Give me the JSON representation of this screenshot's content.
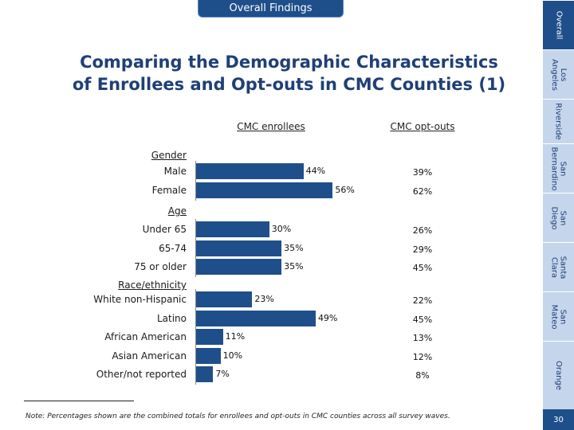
{
  "header": {
    "tab_label": "Overall Findings"
  },
  "title": {
    "line1": "Comparing the Demographic Characteristics",
    "line2": "of Enrollees and Opt-outs in CMC Counties (1)"
  },
  "side_nav": {
    "tabs": [
      "Overall",
      "Los Angeles",
      "Riverside",
      "San Bernardino",
      "San Diego",
      "Santa Clara",
      "San Mateo",
      "Orange"
    ],
    "active": "Overall",
    "page_number": "30"
  },
  "chart_data": {
    "type": "bar",
    "title": "Comparing the Demographic Characteristics of Enrollees and Opt-outs in CMC Counties (1)",
    "columns": [
      "CMC enrollees",
      "CMC opt-outs"
    ],
    "groups": [
      {
        "name": "Gender",
        "rows": [
          {
            "label": "Male",
            "enrollees": 44,
            "enrollees_label": "44%",
            "optouts_label": "39%"
          },
          {
            "label": "Female",
            "enrollees": 56,
            "enrollees_label": "56%",
            "optouts_label": "62%"
          }
        ]
      },
      {
        "name": "Age",
        "rows": [
          {
            "label": "Under 65",
            "enrollees": 30,
            "enrollees_label": "30%",
            "optouts_label": "26%"
          },
          {
            "label": "65-74",
            "enrollees": 35,
            "enrollees_label": "35%",
            "optouts_label": "29%"
          },
          {
            "label": "75 or older",
            "enrollees": 35,
            "enrollees_label": "35%",
            "optouts_label": "45%"
          }
        ]
      },
      {
        "name": "Race/ethnicity",
        "rows": [
          {
            "label": "White non-Hispanic",
            "enrollees": 23,
            "enrollees_label": "23%",
            "optouts_label": "22%"
          },
          {
            "label": "Latino",
            "enrollees": 49,
            "enrollees_label": "49%",
            "optouts_label": "45%"
          },
          {
            "label": "African American",
            "enrollees": 11,
            "enrollees_label": "11%",
            "optouts_label": "13%"
          },
          {
            "label": "Asian American",
            "enrollees": 10,
            "enrollees_label": "10%",
            "optouts_label": "12%"
          },
          {
            "label": "Other/not reported",
            "enrollees": 7,
            "enrollees_label": "7%",
            "optouts_label": "8%"
          }
        ]
      }
    ],
    "note": "Note: Percentages shown are the combined totals for enrollees and opt-outs in CMC counties across all survey waves.",
    "colors": {
      "bar": "#1f4f8a"
    }
  }
}
